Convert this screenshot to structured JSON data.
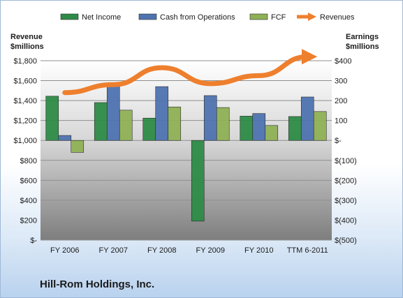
{
  "company": "Hill-Rom Holdings, Inc.",
  "chart_data": {
    "type": "bar",
    "categories": [
      "FY 2006",
      "FY 2007",
      "FY 2008",
      "FY 2009",
      "FY 2010",
      "TTM 6-2011"
    ],
    "series": [
      {
        "name": "Net Income",
        "axis": "right",
        "color": "#2e8b47",
        "values": [
          222,
          190,
          112,
          -405,
          122,
          120
        ]
      },
      {
        "name": "Cash from Operations",
        "axis": "right",
        "color": "#4f73b0",
        "values": [
          25,
          285,
          270,
          225,
          135,
          218
        ]
      },
      {
        "name": "FCF",
        "axis": "right",
        "color": "#8fb055",
        "values": [
          -60,
          152,
          168,
          165,
          75,
          145
        ]
      },
      {
        "name": "Revenues",
        "axis": "left",
        "type": "line",
        "color": "#ee7f2d",
        "values": [
          1480,
          1560,
          1730,
          1570,
          1650,
          1840
        ]
      }
    ],
    "left_axis": {
      "label_line1": "Revenue",
      "label_line2": "$millions",
      "ylim": [
        0,
        1800
      ],
      "ticks": [
        0,
        200,
        400,
        600,
        800,
        1000,
        1200,
        1400,
        1600,
        1800
      ],
      "tick_labels": [
        "$-",
        "$200",
        "$400",
        "$600",
        "$800",
        "$1,000",
        "$1,200",
        "$1,400",
        "$1,600",
        "$1,800"
      ]
    },
    "right_axis": {
      "label_line1": "Earnings",
      "label_line2": "$millions",
      "ylim": [
        -500,
        400
      ],
      "ticks": [
        -500,
        -400,
        -300,
        -200,
        -100,
        0,
        100,
        200,
        300,
        400
      ],
      "tick_labels": [
        "$(500)",
        "$(400)",
        "$(300)",
        "$(200)",
        "$(100)",
        "$-",
        "100",
        "200",
        "300",
        "$400"
      ]
    },
    "legend": "top",
    "grid": true
  }
}
